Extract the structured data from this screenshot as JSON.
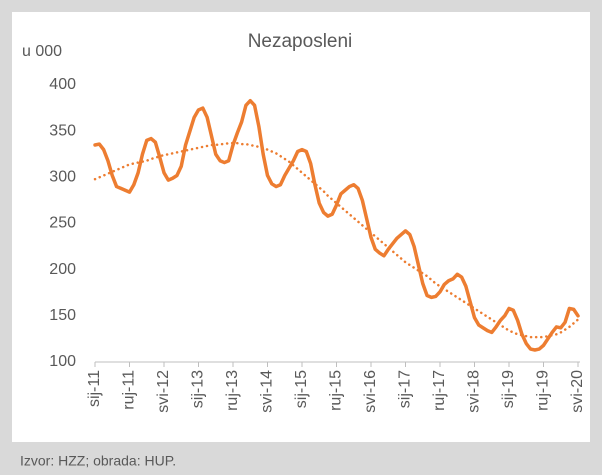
{
  "chart_data": {
    "type": "line",
    "title": "Nezaposleni",
    "y_axis_label": "u 000",
    "source": "Izvor:  HZZ;  obrada: HUP.",
    "categories": [
      "sij-11",
      null,
      null,
      null,
      null,
      null,
      null,
      null,
      "ruj-11",
      null,
      null,
      null,
      null,
      null,
      null,
      null,
      "svi-12",
      null,
      null,
      null,
      null,
      null,
      null,
      null,
      "sij-13",
      null,
      null,
      null,
      null,
      null,
      null,
      null,
      "ruj-13",
      null,
      null,
      null,
      null,
      null,
      null,
      null,
      "svi-14",
      null,
      null,
      null,
      null,
      null,
      null,
      null,
      "sij-15",
      null,
      null,
      null,
      null,
      null,
      null,
      null,
      "ruj-15",
      null,
      null,
      null,
      null,
      null,
      null,
      null,
      "svi-16",
      null,
      null,
      null,
      null,
      null,
      null,
      null,
      "sij-17",
      null,
      null,
      null,
      null,
      null,
      null,
      null,
      "ruj-17",
      null,
      null,
      null,
      null,
      null,
      null,
      null,
      "svi-18",
      null,
      null,
      null,
      null,
      null,
      null,
      null,
      "sij-19",
      null,
      null,
      null,
      null,
      null,
      null,
      null,
      "ruj-19",
      null,
      null,
      null,
      null,
      null,
      null,
      null,
      "svi-20"
    ],
    "series": [
      {
        "color": "#ed7d31",
        "style": "solid",
        "values": [
          335,
          336,
          330,
          318,
          302,
          290,
          288,
          286,
          284,
          292,
          305,
          325,
          340,
          342,
          338,
          322,
          305,
          297,
          299,
          302,
          312,
          335,
          350,
          365,
          373,
          375,
          365,
          345,
          325,
          318,
          316,
          318,
          335,
          348,
          360,
          378,
          383,
          378,
          355,
          325,
          302,
          293,
          290,
          292,
          302,
          310,
          318,
          328,
          330,
          328,
          315,
          292,
          272,
          262,
          258,
          260,
          270,
          282,
          286,
          290,
          292,
          288,
          275,
          255,
          235,
          222,
          218,
          215,
          222,
          228,
          234,
          238,
          242,
          238,
          225,
          205,
          185,
          172,
          170,
          171,
          176,
          184,
          188,
          190,
          195,
          192,
          182,
          165,
          148,
          140,
          137,
          134,
          132,
          138,
          145,
          150,
          158,
          156,
          145,
          130,
          120,
          114,
          113,
          114,
          118,
          125,
          132,
          138,
          137,
          143,
          158,
          157,
          150
        ]
      },
      {
        "color": "#ed7d31",
        "style": "dotted",
        "values": [
          298,
          300,
          302,
          304,
          306,
          308,
          310,
          312,
          314,
          315,
          316,
          317,
          318,
          320,
          321,
          323,
          324,
          325,
          326,
          327,
          328,
          329,
          330,
          331,
          332,
          333,
          334,
          335,
          335,
          336,
          336,
          337,
          337,
          337,
          336,
          336,
          335,
          334,
          333,
          332,
          330,
          328,
          326,
          323,
          320,
          317,
          313,
          309,
          305,
          301,
          297,
          293,
          289,
          285,
          280,
          276,
          272,
          268,
          264,
          260,
          256,
          252,
          248,
          244,
          240,
          236,
          232,
          228,
          224,
          220,
          216,
          212,
          208,
          205,
          202,
          199,
          196,
          193,
          189,
          185,
          182,
          179,
          176,
          173,
          170,
          167,
          164,
          161,
          158,
          155,
          152,
          149,
          146,
          143,
          140,
          137,
          134,
          132,
          130,
          129,
          128,
          127,
          127,
          127,
          127,
          128,
          129,
          130,
          132,
          135,
          138,
          142,
          146
        ]
      }
    ],
    "ylim": [
      100,
      400
    ],
    "yticks": [
      100,
      150,
      200,
      250,
      300,
      350,
      400
    ],
    "grid": false
  }
}
